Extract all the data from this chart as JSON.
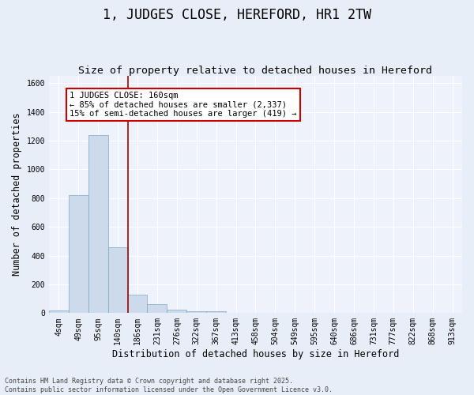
{
  "title": "1, JUDGES CLOSE, HEREFORD, HR1 2TW",
  "subtitle": "Size of property relative to detached houses in Hereford",
  "xlabel": "Distribution of detached houses by size in Hereford",
  "ylabel": "Number of detached properties",
  "bar_labels": [
    "4sqm",
    "49sqm",
    "95sqm",
    "140sqm",
    "186sqm",
    "231sqm",
    "276sqm",
    "322sqm",
    "367sqm",
    "413sqm",
    "458sqm",
    "504sqm",
    "549sqm",
    "595sqm",
    "640sqm",
    "686sqm",
    "731sqm",
    "777sqm",
    "822sqm",
    "868sqm",
    "913sqm"
  ],
  "bar_values": [
    20,
    820,
    1240,
    460,
    130,
    60,
    25,
    15,
    15,
    0,
    0,
    0,
    0,
    0,
    0,
    0,
    0,
    0,
    0,
    0,
    0
  ],
  "bar_color": "#ccdaeb",
  "bar_edge_color": "#7da8c8",
  "vline_x": 3.5,
  "vline_color": "#aa0000",
  "ylim": [
    0,
    1650
  ],
  "annotation_text": "1 JUDGES CLOSE: 160sqm\n← 85% of detached houses are smaller (2,337)\n15% of semi-detached houses are larger (419) →",
  "annotation_box_color": "#ffffff",
  "annotation_border_color": "#cc0000",
  "footer_text": "Contains HM Land Registry data © Crown copyright and database right 2025.\nContains public sector information licensed under the Open Government Licence v3.0.",
  "bg_color": "#e8eef8",
  "plot_bg_color": "#eef2fa",
  "grid_color": "#ffffff",
  "title_fontsize": 12,
  "subtitle_fontsize": 9.5,
  "tick_fontsize": 7,
  "ylabel_fontsize": 8.5,
  "xlabel_fontsize": 8.5,
  "footer_fontsize": 6,
  "annotation_fontsize": 7.5
}
